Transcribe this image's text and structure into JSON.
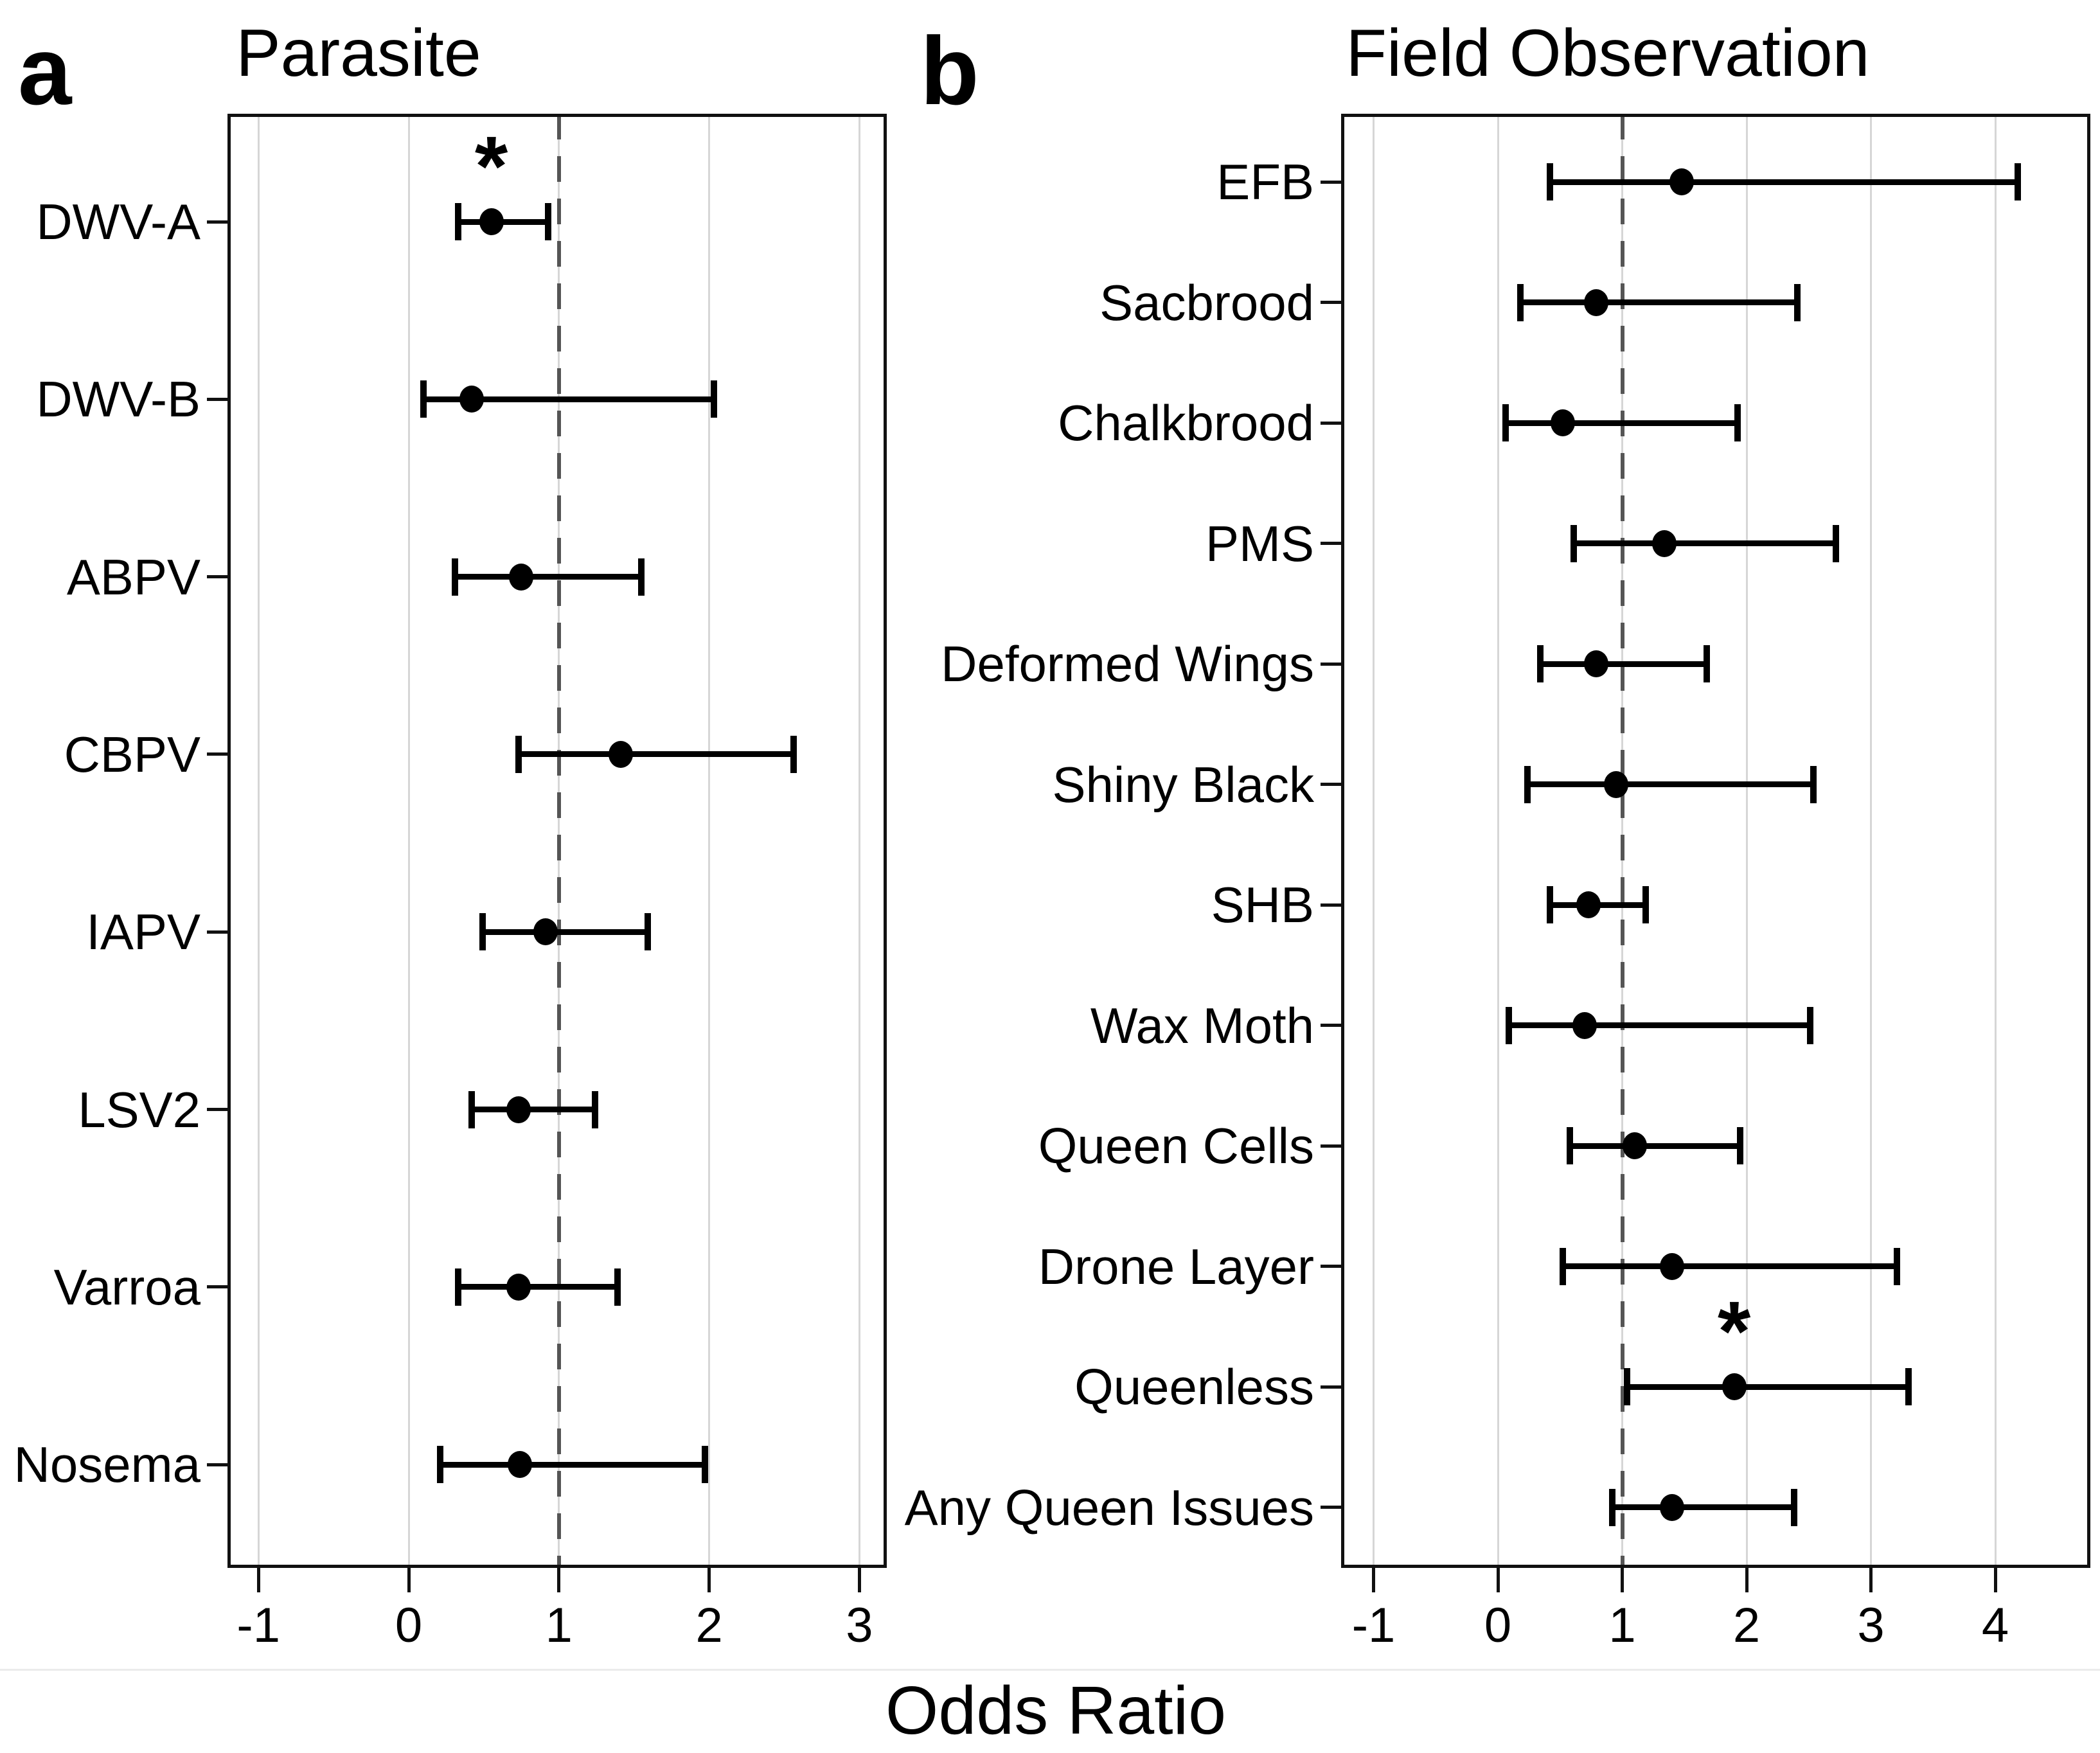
{
  "figure": {
    "panel_a_label": "a",
    "panel_b_label": "b",
    "x_axis_label": "Odds Ratio",
    "significance_marker": "*"
  },
  "chart_data": [
    {
      "type": "scatter",
      "subtype": "forest-plot",
      "panel": "a",
      "title": "Parasite",
      "xlabel": "Odds Ratio",
      "xlim": [
        -1.2,
        3.2
      ],
      "xticks": [
        -1,
        0,
        1,
        2,
        3
      ],
      "reference_line_x": 1,
      "grid": "vertical-light-gray",
      "points": [
        {
          "label": "DWV-A",
          "or": 0.55,
          "ci_low": 0.33,
          "ci_high": 0.93,
          "significant": true
        },
        {
          "label": "DWV-B",
          "or": 0.42,
          "ci_low": 0.1,
          "ci_high": 2.03,
          "significant": false
        },
        {
          "label": "ABPV",
          "or": 0.75,
          "ci_low": 0.31,
          "ci_high": 1.55,
          "significant": false
        },
        {
          "label": "CBPV",
          "or": 1.41,
          "ci_low": 0.73,
          "ci_high": 2.56,
          "significant": false
        },
        {
          "label": "IAPV",
          "or": 0.91,
          "ci_low": 0.49,
          "ci_high": 1.59,
          "significant": false
        },
        {
          "label": "LSV2",
          "or": 0.73,
          "ci_low": 0.42,
          "ci_high": 1.24,
          "significant": false
        },
        {
          "label": "Varroa",
          "or": 0.73,
          "ci_low": 0.33,
          "ci_high": 1.39,
          "significant": false
        },
        {
          "label": "Nosema",
          "or": 0.74,
          "ci_low": 0.21,
          "ci_high": 1.97,
          "significant": false
        }
      ]
    },
    {
      "type": "scatter",
      "subtype": "forest-plot",
      "panel": "b",
      "title": "Field Observation",
      "xlabel": "Odds Ratio",
      "xlim": [
        -1.26,
        4.77
      ],
      "xticks": [
        -1,
        0,
        1,
        2,
        3,
        4
      ],
      "reference_line_x": 1,
      "grid": "vertical-light-gray",
      "points": [
        {
          "label": "EFB",
          "or": 1.48,
          "ci_low": 0.42,
          "ci_high": 4.18,
          "significant": false
        },
        {
          "label": "Sacbrood",
          "or": 0.79,
          "ci_low": 0.18,
          "ci_high": 2.41,
          "significant": false
        },
        {
          "label": "Chalkbrood",
          "or": 0.52,
          "ci_low": 0.06,
          "ci_high": 1.93,
          "significant": false
        },
        {
          "label": "PMS",
          "or": 1.34,
          "ci_low": 0.61,
          "ci_high": 2.72,
          "significant": false
        },
        {
          "label": "Deformed Wings",
          "or": 0.79,
          "ci_low": 0.34,
          "ci_high": 1.68,
          "significant": false
        },
        {
          "label": "Shiny Black",
          "or": 0.95,
          "ci_low": 0.24,
          "ci_high": 2.54,
          "significant": false
        },
        {
          "label": "SHB",
          "or": 0.73,
          "ci_low": 0.42,
          "ci_high": 1.19,
          "significant": false
        },
        {
          "label": "Wax Moth",
          "or": 0.7,
          "ci_low": 0.09,
          "ci_high": 2.51,
          "significant": false
        },
        {
          "label": "Queen Cells",
          "or": 1.1,
          "ci_low": 0.58,
          "ci_high": 1.95,
          "significant": false
        },
        {
          "label": "Drone Layer",
          "or": 1.4,
          "ci_low": 0.52,
          "ci_high": 3.21,
          "significant": false
        },
        {
          "label": "Queenless",
          "or": 1.9,
          "ci_low": 1.04,
          "ci_high": 3.3,
          "significant": true
        },
        {
          "label": "Any Queen Issues",
          "or": 1.4,
          "ci_low": 0.92,
          "ci_high": 2.38,
          "significant": false
        }
      ]
    }
  ]
}
